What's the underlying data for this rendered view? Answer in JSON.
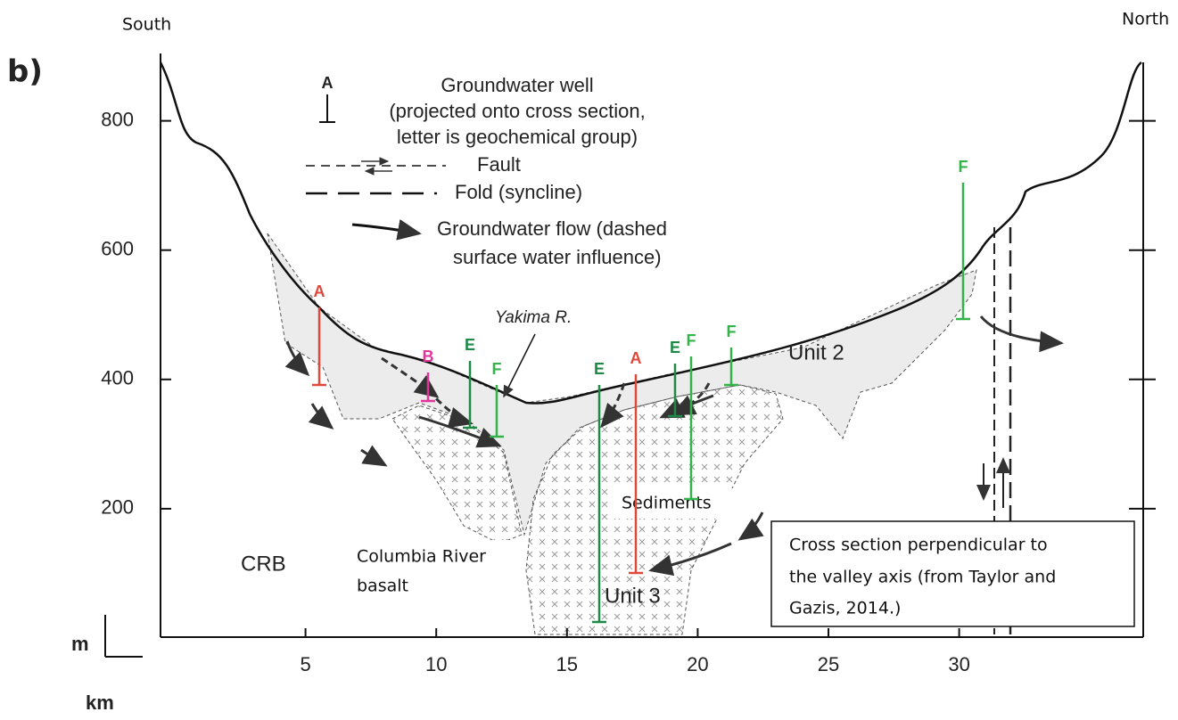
{
  "header": {
    "panel": "b)",
    "left": "South",
    "right": "North"
  },
  "axes": {
    "yticks": [
      800,
      600,
      400,
      200
    ],
    "xticks": [
      5,
      10,
      15,
      20,
      25,
      30
    ],
    "y_unit": "m",
    "x_unit": "km"
  },
  "legend": {
    "well_letter": "A",
    "well": [
      "Groundwater well",
      "(projected onto cross section,",
      "letter is geochemical group)"
    ],
    "fault": "Fault",
    "fold": "Fold (syncline)",
    "flow": [
      "Groundwater flow (dashed",
      "surface water influence)"
    ]
  },
  "labels": {
    "river": "Yakima R.",
    "unit2": "Unit 2",
    "unit3": "Unit 3",
    "sediments": "Sediments",
    "crb": "CRB",
    "basalt": [
      "Columbia River",
      "basalt"
    ]
  },
  "note": [
    "Cross section  perpendicular to",
    "the valley axis (from Taylor and",
    "Gazis, 2014.)"
  ],
  "wells": [
    {
      "label": "A",
      "color": "#e0483c"
    },
    {
      "label": "B",
      "color": "#e0359a"
    },
    {
      "label": "E",
      "color": "#1f8a46"
    },
    {
      "label": "F",
      "color": "#33b34a"
    },
    {
      "label": "E",
      "color": "#1f8a46"
    },
    {
      "label": "A",
      "color": "#e0483c"
    },
    {
      "label": "E",
      "color": "#1f8a46"
    },
    {
      "label": "F",
      "color": "#33b34a"
    },
    {
      "label": "F",
      "color": "#33b34a"
    },
    {
      "label": "F",
      "color": "#33b34a"
    }
  ]
}
